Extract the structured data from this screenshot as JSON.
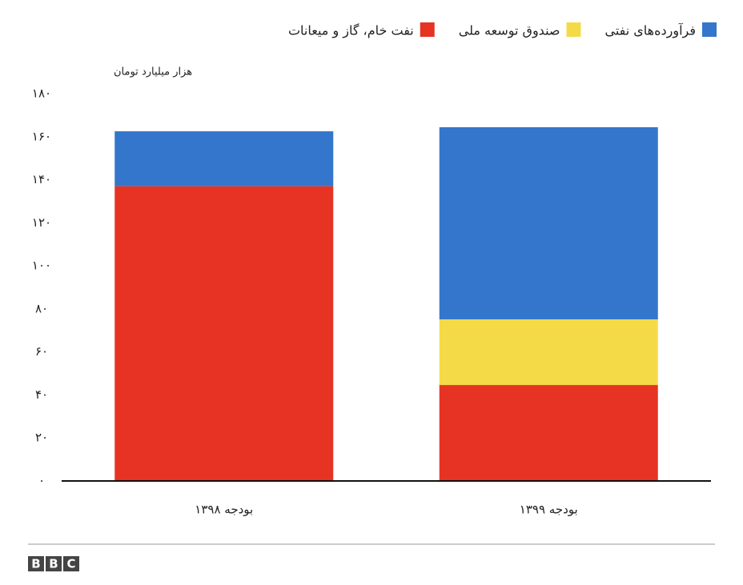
{
  "chart_data": {
    "type": "stacked_bar",
    "y_axis_label": "هزار میلیارد تومان",
    "categories": [
      "بودجه ۱۳۹۸",
      "بودجه ۱۳۹۹"
    ],
    "series": [
      {
        "name": "نفت خام، گاز و میعانات",
        "color": "#e63323",
        "values": [
          137,
          44.6
        ]
      },
      {
        "name": "صندوق توسعه ملی",
        "color": "#f5da48",
        "values": [
          0,
          30.5
        ]
      },
      {
        "name": "فرآورده‌های نفتی",
        "color": "#3476cb",
        "values": [
          25.5,
          89.3
        ]
      }
    ],
    "ylim": [
      0,
      180
    ],
    "yticks": [
      {
        "value": 0,
        "label": "۰"
      },
      {
        "value": 20,
        "label": "۲۰"
      },
      {
        "value": 40,
        "label": "۴۰"
      },
      {
        "value": 60,
        "label": "۶۰"
      },
      {
        "value": 80,
        "label": "۸۰"
      },
      {
        "value": 100,
        "label": "۱۰۰"
      },
      {
        "value": 120,
        "label": "۱۲۰"
      },
      {
        "value": 140,
        "label": "۱۴۰"
      },
      {
        "value": 160,
        "label": "۱۶۰"
      },
      {
        "value": 180,
        "label": "۱۸۰"
      }
    ],
    "logo": [
      "B",
      "B",
      "C"
    ]
  }
}
